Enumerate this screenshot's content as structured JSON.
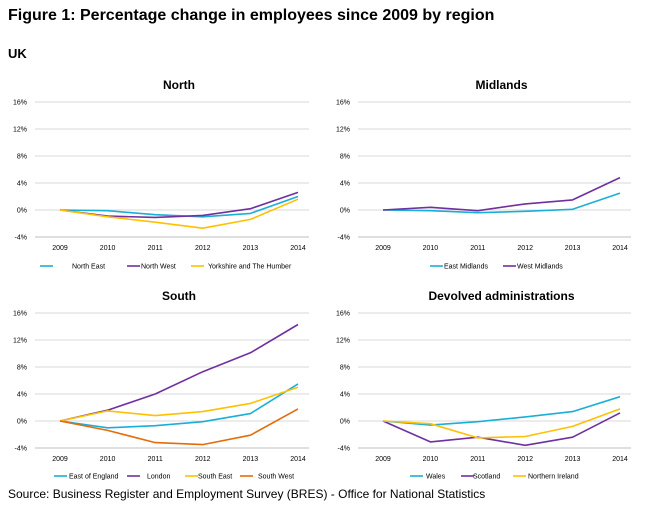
{
  "figure_title": "Figure 1: Percentage change in employees since 2009 by region",
  "region_label": "UK",
  "source": "Source: Business Register and Employment Survey (BRES) - Office for National Statistics",
  "colors": {
    "c1": "#1AAFD6",
    "c2": "#7030A0",
    "c3": "#FFC000",
    "c4": "#E46C0A",
    "grid": "#D9D9D9"
  },
  "chart_data": [
    {
      "type": "line",
      "title": "North",
      "categories": [
        "2009",
        "2010",
        "2011",
        "2012",
        "2013",
        "2014"
      ],
      "y_ticks": [
        "16%",
        "12%",
        "8%",
        "4%",
        "0%",
        "-4%"
      ],
      "ylim": [
        -4,
        16
      ],
      "series": [
        {
          "name": "North East",
          "values": [
            0,
            -0.1,
            -0.7,
            -1.0,
            -0.5,
            2.0
          ]
        },
        {
          "name": "North West",
          "values": [
            0,
            -0.9,
            -1.1,
            -0.8,
            0.2,
            2.6
          ]
        },
        {
          "name": "Yorkshire and The Humber",
          "values": [
            0,
            -1.0,
            -1.8,
            -2.7,
            -1.4,
            1.6
          ]
        }
      ]
    },
    {
      "type": "line",
      "title": "Midlands",
      "categories": [
        "2009",
        "2010",
        "2011",
        "2012",
        "2013",
        "2014"
      ],
      "y_ticks": [
        "16%",
        "12%",
        "8%",
        "4%",
        "0%",
        "-4%"
      ],
      "ylim": [
        -4,
        16
      ],
      "series": [
        {
          "name": "East Midlands",
          "values": [
            0,
            -0.1,
            -0.4,
            -0.2,
            0.1,
            2.5
          ]
        },
        {
          "name": "West Midlands",
          "values": [
            0,
            0.4,
            -0.1,
            0.9,
            1.5,
            4.8
          ]
        }
      ]
    },
    {
      "type": "line",
      "title": "South",
      "categories": [
        "2009",
        "2010",
        "2011",
        "2012",
        "2013",
        "2014"
      ],
      "y_ticks": [
        "16%",
        "12%",
        "8%",
        "4%",
        "0%",
        "-4%"
      ],
      "ylim": [
        -4,
        16
      ],
      "series": [
        {
          "name": "East of England",
          "values": [
            0,
            -1.0,
            -0.7,
            -0.1,
            1.1,
            5.5
          ]
        },
        {
          "name": "London",
          "values": [
            0,
            1.6,
            4.0,
            7.3,
            10.1,
            14.3
          ]
        },
        {
          "name": "South East",
          "values": [
            0,
            1.5,
            0.8,
            1.4,
            2.6,
            5.0
          ]
        },
        {
          "name": "South West",
          "values": [
            0,
            -1.4,
            -3.2,
            -3.5,
            -2.1,
            1.8
          ]
        }
      ]
    },
    {
      "type": "line",
      "title": "Devolved administrations",
      "categories": [
        "2009",
        "2010",
        "2011",
        "2012",
        "2013",
        "2014"
      ],
      "y_ticks": [
        "16%",
        "12%",
        "8%",
        "4%",
        "0%",
        "-4%"
      ],
      "ylim": [
        -4,
        16
      ],
      "series": [
        {
          "name": "Wales",
          "values": [
            0,
            -0.6,
            -0.1,
            0.6,
            1.4,
            3.6
          ]
        },
        {
          "name": "Scotland",
          "values": [
            0,
            -3.1,
            -2.4,
            -3.6,
            -2.4,
            1.2
          ]
        },
        {
          "name": "Northern Ireland",
          "values": [
            0,
            -0.4,
            -2.5,
            -2.3,
            -0.8,
            1.8
          ]
        }
      ]
    }
  ]
}
